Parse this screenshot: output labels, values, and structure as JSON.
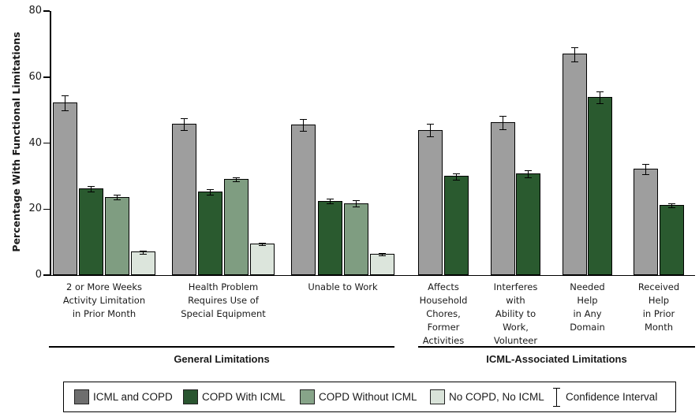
{
  "chart_data": {
    "type": "bar",
    "title": "",
    "xlabel": "",
    "ylabel": "Percentage With Functional Limitations",
    "ylim": [
      0,
      80
    ],
    "yticks": [
      0,
      20,
      40,
      60,
      80
    ],
    "grid": false,
    "legend_position": "bottom-boxed",
    "error_bars": true,
    "ci_legend_label": "Confidence Interval",
    "series": [
      {
        "name": "ICML and COPD",
        "color": "#9e9e9e",
        "legend_color": "#6e6e6e"
      },
      {
        "name": "COPD With ICML",
        "color": "#2a5a2f",
        "legend_color": "#2a5530"
      },
      {
        "name": "COPD Without ICML",
        "color": "#7f9d81",
        "legend_color": "#87a489"
      },
      {
        "name": "No COPD, No ICML",
        "color": "#dce5dc",
        "legend_color": "#d9e3d9"
      }
    ],
    "sections": [
      {
        "label": "General Limitations",
        "group_indexes": [
          0,
          1,
          2
        ]
      },
      {
        "label": "ICML-Associated Limitations",
        "group_indexes": [
          3,
          4,
          5,
          6
        ]
      }
    ],
    "groups": [
      {
        "label": "2 or More Weeks\nActivity Limitation\nin Prior Month",
        "values": [
          52.3,
          26.3,
          23.7,
          7.1
        ],
        "ci": [
          2.2,
          0.7,
          0.6,
          0.3
        ]
      },
      {
        "label": "Health Problem\nRequires Use of\nSpecial Equipment",
        "values": [
          45.8,
          25.4,
          29.2,
          9.6
        ],
        "ci": [
          1.7,
          0.7,
          0.5,
          0.3
        ]
      },
      {
        "label": "Unable to Work",
        "values": [
          45.7,
          22.5,
          21.8,
          6.4
        ],
        "ci": [
          1.7,
          0.6,
          0.8,
          0.2
        ]
      },
      {
        "label": "Affects\nHousehold\nChores,\nFormer\nActivities",
        "values": [
          44.0,
          30.0
        ],
        "ci": [
          1.8,
          0.8
        ]
      },
      {
        "label": "Interferes\nwith\nAbility to\nWork,\nVolunteer",
        "values": [
          46.4,
          30.8
        ],
        "ci": [
          1.9,
          0.9
        ]
      },
      {
        "label": "Needed\nHelp\nin Any\nDomain",
        "values": [
          67.0,
          53.9
        ],
        "ci": [
          2.0,
          1.7
        ]
      },
      {
        "label": "Received\nHelp\nin Prior\nMonth",
        "values": [
          32.2,
          21.3
        ],
        "ci": [
          1.4,
          0.5
        ]
      }
    ]
  }
}
